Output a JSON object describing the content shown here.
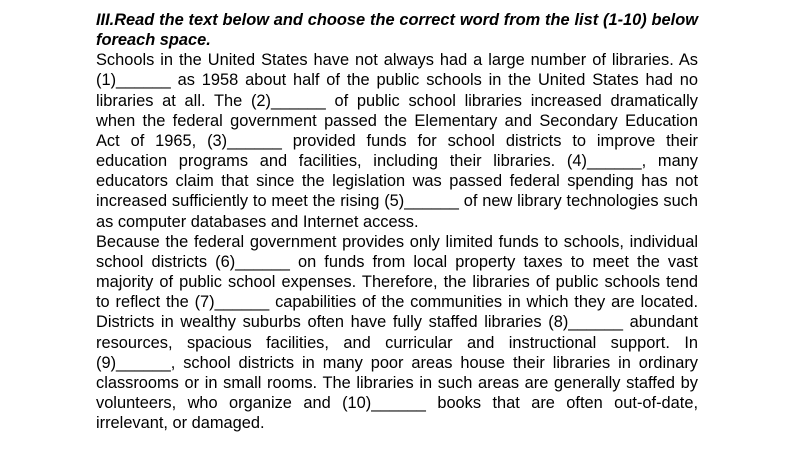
{
  "heading": "III.Read the text below and choose the correct word from the list (1-10) below foreach space.",
  "paragraph_1": "Schools in the United States have not always had a large number of libraries. As (1)______ as 1958 about half of the public schools in the United States had no libraries at all. The (2)______ of public school libraries increased dramatically when the federal government passed the Elementary and Secondary Education Act of 1965, (3)______ provided funds for school districts to improve their education programs and facilities, including their libraries. (4)______, many educators claim that since the legislation was passed federal spending has not increased sufficiently to meet the rising (5)______ of new library technologies such as computer databases and Internet access.",
  "paragraph_2": "Because the federal government provides only limited funds to schools, individual school districts (6)______ on funds from local property taxes to meet the vast majority of public school expenses. Therefore, the libraries of public schools tend to reflect the (7)______ capabilities of the communities in which they are located. Districts in wealthy suburbs often have fully staffed libraries (8)______ abundant resources, spacious facilities, and curricular and instructional support. In (9)______, school districts in many poor areas house their libraries in ordinary classrooms or in small rooms. The libraries in such areas are generally staffed by volunteers, who organize and (10)______ books that are often out-of-date, irrelevant, or damaged."
}
